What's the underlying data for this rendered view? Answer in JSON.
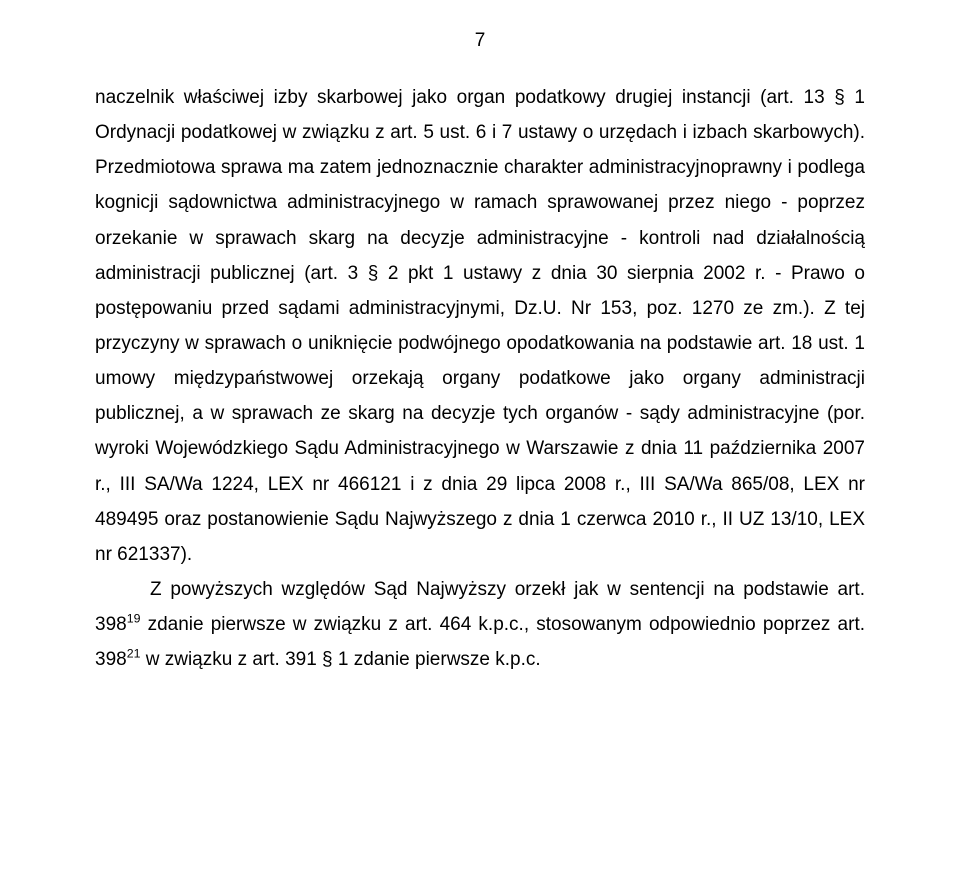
{
  "pageNumber": "7",
  "paragraphs": [
    {
      "class": "",
      "text": "naczelnik właściwej izby skarbowej jako organ podatkowy drugiej instancji (art. 13 § 1 Ordynacji podatkowej w związku z art. 5 ust. 6 i 7 ustawy o urzędach i izbach skarbowych). Przedmiotowa sprawa ma zatem jednoznacznie charakter administracyjnoprawny i podlega kognicji sądownictwa administracyjnego w ramach sprawowanej przez niego - poprzez orzekanie w sprawach skarg na decyzje administracyjne - kontroli nad działalnością administracji publicznej (art. 3 § 2 pkt 1 ustawy z dnia 30 sierpnia 2002 r. - Prawo o postępowaniu przed sądami administracyjnymi, Dz.U. Nr 153, poz. 1270 ze zm.). Z tej przyczyny w sprawach o uniknięcie podwójnego opodatkowania na podstawie art. 18 ust. 1 umowy międzypaństwowej orzekają organy podatkowe jako organy administracji publicznej, a w sprawach ze skarg na decyzje tych organów - sądy administracyjne (por. wyroki Wojewódzkiego Sądu Administracyjnego w Warszawie z dnia 11 października 2007 r., III SA/Wa 1224, LEX nr 466121 i z dnia 29 lipca 2008 r., III SA/Wa 865/08, LEX nr 489495 oraz postanowienie Sądu Najwyższego z dnia 1 czerwca 2010 r., II UZ 13/10, LEX nr 621337)."
    },
    {
      "class": "indent",
      "html": "Z powyższych względów Sąd Najwyższy orzekł jak w sentencji na podstawie art. 398<sup>19</sup> zdanie pierwsze w związku z art. 464 k.p.c., stosowanym odpowiednio poprzez art. 398<sup>21</sup> w związku z art. 391 § 1 zdanie pierwsze k.p.c."
    }
  ]
}
